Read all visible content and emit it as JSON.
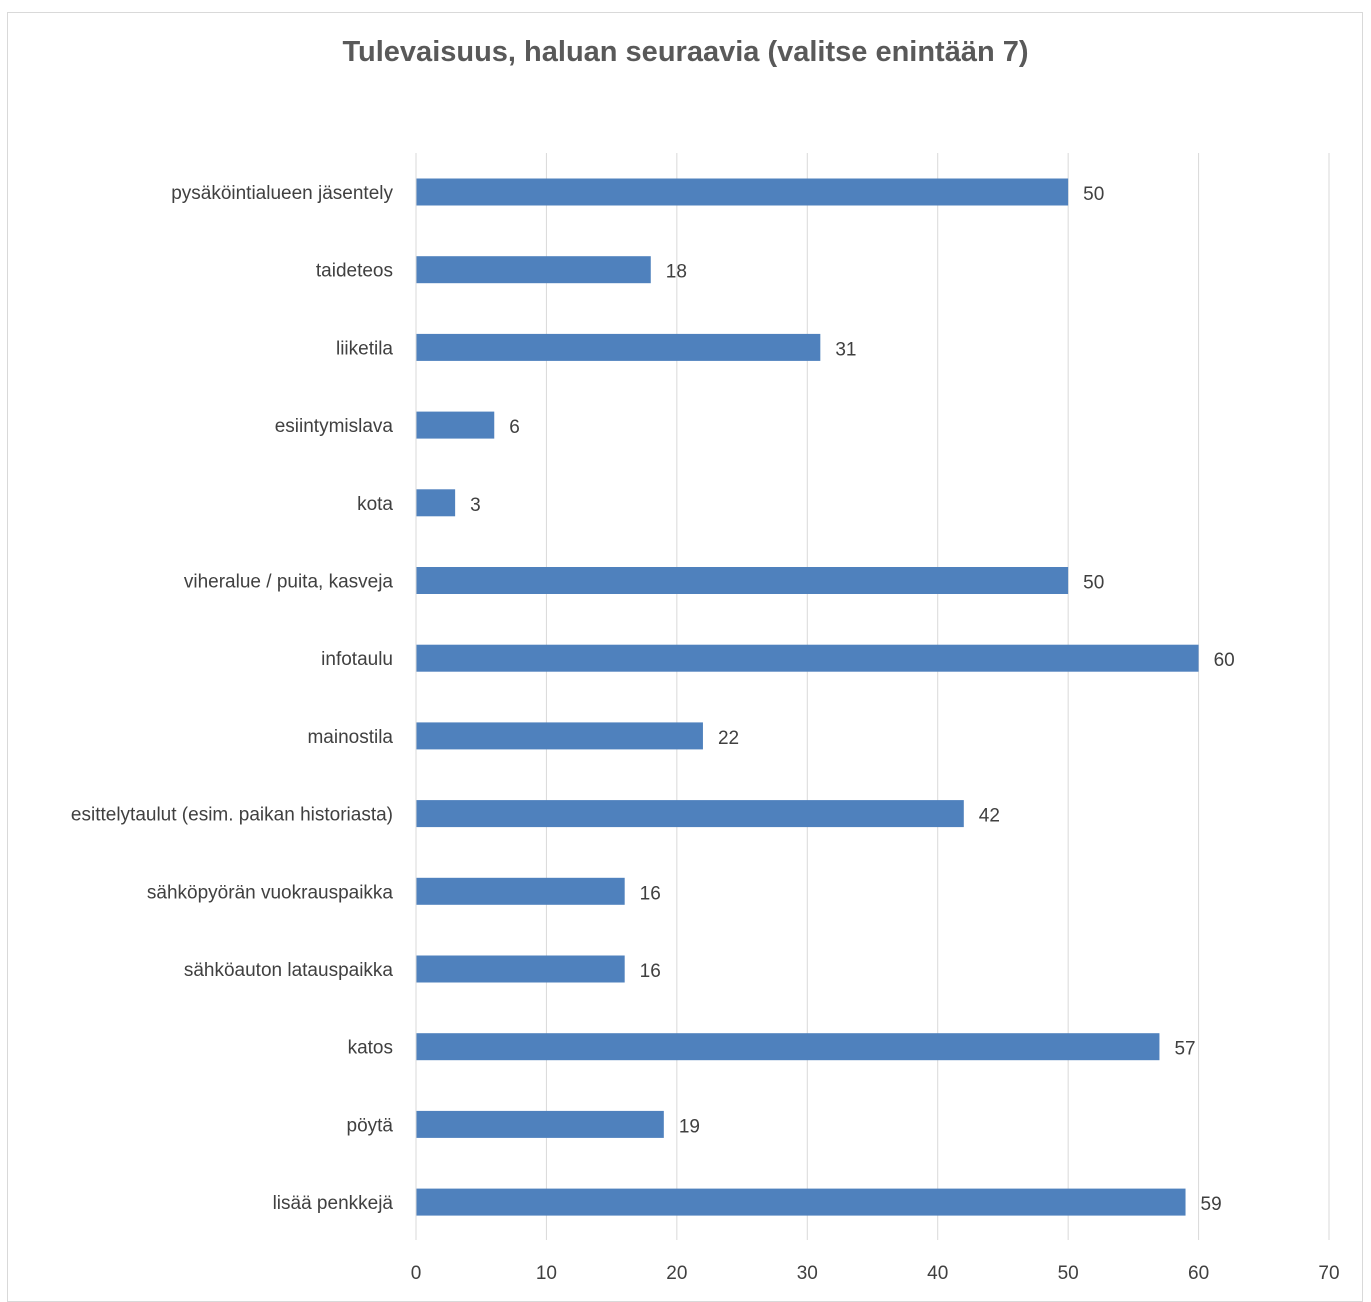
{
  "chart_data": {
    "type": "bar",
    "orientation": "horizontal",
    "title": "Tulevaisuus, haluan seuraavia (valitse enintään 7)",
    "categories": [
      "pysäköintialueen jäsentely",
      "taideteos",
      "liiketila",
      "esiintymislava",
      "kota",
      "viheralue / puita, kasveja",
      "infotaulu",
      "mainostila",
      "esittelytaulut (esim. paikan historiasta)",
      "sähköpyörän vuokrauspaikka",
      "sähköauton latauspaikka",
      "katos",
      "pöytä",
      "lisää penkkejä"
    ],
    "values": [
      50,
      18,
      31,
      6,
      3,
      50,
      60,
      22,
      42,
      16,
      16,
      57,
      19,
      59
    ],
    "xlabel": "",
    "ylabel": "",
    "xlim": [
      0,
      70
    ],
    "x_ticks": [
      "0",
      "10",
      "20",
      "30",
      "40",
      "50",
      "60",
      "70"
    ],
    "grid": "vertical",
    "legend": "none",
    "data_labels": true,
    "colors": {
      "bar": "#4f81bd",
      "grid": "#d9d9d9",
      "text": "#404040",
      "title": "#595959"
    }
  }
}
